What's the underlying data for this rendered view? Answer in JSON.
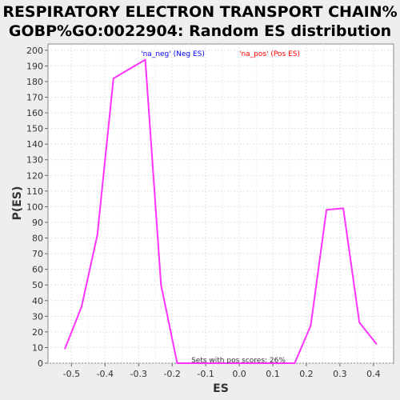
{
  "chart_data": {
    "type": "line",
    "title_lines": [
      "RESPIRATORY ELECTRON TRANSPORT CHAIN%",
      "GOBP%GO:0022904: Random ES distribution"
    ],
    "xlabel": "ES",
    "ylabel": "P(ES)",
    "xlim": [
      -0.57,
      0.46
    ],
    "ylim": [
      0,
      204
    ],
    "x_ticks": [
      -0.5,
      -0.4,
      -0.3,
      -0.2,
      -0.1,
      0.0,
      0.1,
      0.2,
      0.3,
      0.4
    ],
    "x_tick_labels": [
      "-0.5",
      "-0.4",
      "-0.3",
      "-0.2",
      "-0.1",
      "0.0",
      "0.1",
      "0.2",
      "0.3",
      "0.4"
    ],
    "y_ticks": [
      0,
      10,
      20,
      30,
      40,
      50,
      60,
      70,
      80,
      90,
      100,
      110,
      120,
      130,
      140,
      150,
      160,
      170,
      180,
      190,
      200
    ],
    "y_tick_labels": [
      "0",
      "10",
      "20",
      "30",
      "40",
      "50",
      "60",
      "70",
      "80",
      "90",
      "100",
      "110",
      "120",
      "130",
      "140",
      "150",
      "160",
      "170",
      "180",
      "190",
      "200"
    ],
    "grid": true,
    "legend": {
      "placement": "top-center",
      "entries": [
        {
          "label": "'na_neg' (Neg ES)",
          "color": "#0000ff"
        },
        {
          "label": "'na_pos' (Pos ES)",
          "color": "#ff0000"
        }
      ]
    },
    "annotation": "Sets with pos scores: 26%",
    "series": [
      {
        "color": "#ff33ff",
        "x": [
          -0.52,
          -0.47,
          -0.423,
          -0.375,
          -0.28,
          -0.233,
          -0.185,
          0.165,
          0.213,
          0.26,
          0.31,
          0.358,
          0.41
        ],
        "y": [
          9,
          36,
          82,
          182,
          194,
          50,
          0,
          0,
          24,
          98,
          99,
          26,
          12
        ]
      }
    ]
  }
}
